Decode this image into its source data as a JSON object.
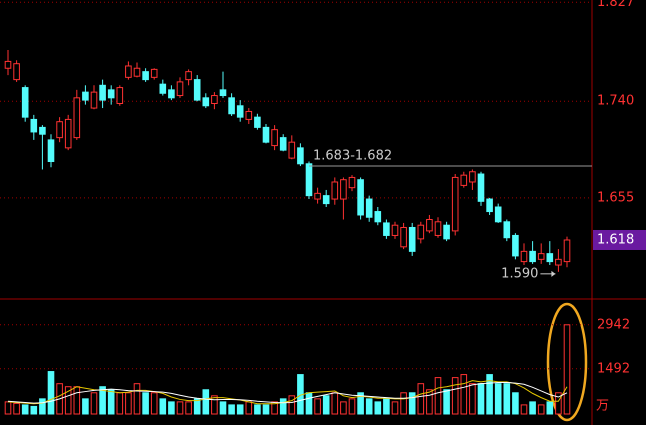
{
  "chart_data": [
    {
      "type": "candlestick",
      "open": [
        1.769,
        1.759,
        1.752,
        1.724,
        1.717,
        1.706,
        1.708,
        1.699,
        1.708,
        1.748,
        1.734,
        1.754,
        1.75,
        1.738,
        1.761,
        1.762,
        1.766,
        1.761,
        1.755,
        1.75,
        1.745,
        1.759,
        1.759,
        1.743,
        1.738,
        1.75,
        1.743,
        1.736,
        1.724,
        1.726,
        1.717,
        1.701,
        1.708,
        1.69,
        1.699,
        1.685,
        1.654,
        1.657,
        1.654,
        1.654,
        1.664,
        1.671,
        1.654,
        1.643,
        1.633,
        1.622,
        1.612,
        1.629,
        1.619,
        1.626,
        1.622,
        1.631,
        1.626,
        1.666,
        1.669,
        1.676,
        1.654,
        1.647,
        1.634,
        1.622,
        1.599,
        1.608,
        1.601,
        1.606,
        1.596,
        1.599
      ],
      "high": [
        1.785,
        1.776,
        1.754,
        1.728,
        1.719,
        1.711,
        1.726,
        1.728,
        1.75,
        1.754,
        1.754,
        1.759,
        1.754,
        1.754,
        1.775,
        1.774,
        1.769,
        1.769,
        1.759,
        1.754,
        1.761,
        1.768,
        1.763,
        1.747,
        1.748,
        1.766,
        1.747,
        1.741,
        1.734,
        1.729,
        1.72,
        1.719,
        1.711,
        1.71,
        1.703,
        1.687,
        1.664,
        1.662,
        1.673,
        1.673,
        1.675,
        1.673,
        1.657,
        1.647,
        1.636,
        1.634,
        1.633,
        1.633,
        1.634,
        1.64,
        1.638,
        1.634,
        1.676,
        1.678,
        1.68,
        1.678,
        1.655,
        1.65,
        1.636,
        1.624,
        1.615,
        1.617,
        1.615,
        1.617,
        1.61,
        1.621
      ],
      "low": [
        1.763,
        1.757,
        1.722,
        1.706,
        1.68,
        1.682,
        1.704,
        1.697,
        1.706,
        1.737,
        1.733,
        1.734,
        1.737,
        1.736,
        1.759,
        1.761,
        1.757,
        1.759,
        1.745,
        1.741,
        1.743,
        1.754,
        1.74,
        1.734,
        1.733,
        1.743,
        1.727,
        1.722,
        1.72,
        1.715,
        1.703,
        1.697,
        1.696,
        1.689,
        1.683,
        1.654,
        1.65,
        1.647,
        1.649,
        1.636,
        1.661,
        1.636,
        1.634,
        1.631,
        1.619,
        1.619,
        1.61,
        1.604,
        1.615,
        1.624,
        1.62,
        1.617,
        1.622,
        1.664,
        1.662,
        1.648,
        1.64,
        1.633,
        1.617,
        1.601,
        1.596,
        1.597,
        1.597,
        1.596,
        1.59,
        1.594
      ],
      "close": [
        1.775,
        1.773,
        1.726,
        1.713,
        1.711,
        1.687,
        1.722,
        1.724,
        1.743,
        1.741,
        1.748,
        1.741,
        1.743,
        1.752,
        1.771,
        1.769,
        1.759,
        1.768,
        1.747,
        1.743,
        1.757,
        1.766,
        1.741,
        1.736,
        1.745,
        1.745,
        1.729,
        1.726,
        1.731,
        1.717,
        1.704,
        1.715,
        1.697,
        1.704,
        1.685,
        1.657,
        1.659,
        1.65,
        1.669,
        1.671,
        1.673,
        1.64,
        1.638,
        1.634,
        1.622,
        1.631,
        1.629,
        1.608,
        1.631,
        1.636,
        1.634,
        1.619,
        1.673,
        1.675,
        1.678,
        1.652,
        1.643,
        1.634,
        1.62,
        1.604,
        1.608,
        1.599,
        1.606,
        1.599,
        1.601,
        1.618
      ],
      "up_color": "#ff3232",
      "down_color": "#54fcfc",
      "ylim": [
        1.567,
        1.829
      ],
      "yticks": [
        1.827,
        {
          "value": 1.74,
          "label": "1.740"
        },
        1.655
      ],
      "grid": true,
      "last_price": 1.618,
      "annotations": [
        {
          "label": "1.683-1.682",
          "value": 1.683
        },
        {
          "label": "1.590",
          "value": 1.59
        }
      ]
    },
    {
      "type": "bar",
      "values": [
        400,
        350,
        300,
        250,
        500,
        1400,
        1000,
        900,
        900,
        500,
        700,
        900,
        800,
        700,
        700,
        1000,
        700,
        700,
        500,
        400,
        400,
        400,
        500,
        800,
        600,
        400,
        300,
        300,
        400,
        300,
        300,
        400,
        500,
        600,
        1300,
        700,
        500,
        600,
        700,
        400,
        500,
        700,
        500,
        400,
        500,
        400,
        700,
        700,
        1000,
        800,
        1200,
        800,
        1200,
        1300,
        1000,
        1000,
        1300,
        1000,
        1000,
        700,
        300,
        400,
        300,
        400,
        700,
        2942
      ],
      "lines": [
        {
          "color": "#e6c800",
          "values": [
            400,
            380,
            360,
            340,
            360,
            480,
            600,
            750,
            900,
            850,
            800,
            780,
            740,
            700,
            720,
            780,
            780,
            740,
            680,
            560,
            480,
            440,
            440,
            500,
            540,
            540,
            500,
            460,
            400,
            340,
            340,
            340,
            380,
            440,
            620,
            700,
            720,
            740,
            760,
            600,
            540,
            580,
            560,
            520,
            520,
            500,
            500,
            540,
            660,
            720,
            860,
            900,
            960,
            1000,
            1100,
            1060,
            1100,
            1060,
            1060,
            1000,
            860,
            680,
            540,
            420,
            420,
            900
          ]
        },
        {
          "color": "#ffffff",
          "values": [
            420,
            400,
            380,
            360,
            370,
            420,
            500,
            600,
            700,
            740,
            780,
            800,
            820,
            800,
            770,
            760,
            750,
            740,
            720,
            680,
            620,
            560,
            520,
            490,
            470,
            480,
            480,
            470,
            450,
            420,
            400,
            380,
            370,
            380,
            450,
            520,
            580,
            640,
            700,
            660,
            620,
            600,
            580,
            560,
            540,
            520,
            520,
            540,
            580,
            620,
            700,
            760,
            820,
            880,
            960,
            1000,
            1020,
            1040,
            1040,
            1020,
            980,
            880,
            760,
            640,
            560,
            700
          ]
        }
      ],
      "ylim": [
        0,
        3760
      ],
      "yticks": [
        2942,
        1492
      ],
      "grid": true,
      "unit": "万"
    }
  ]
}
